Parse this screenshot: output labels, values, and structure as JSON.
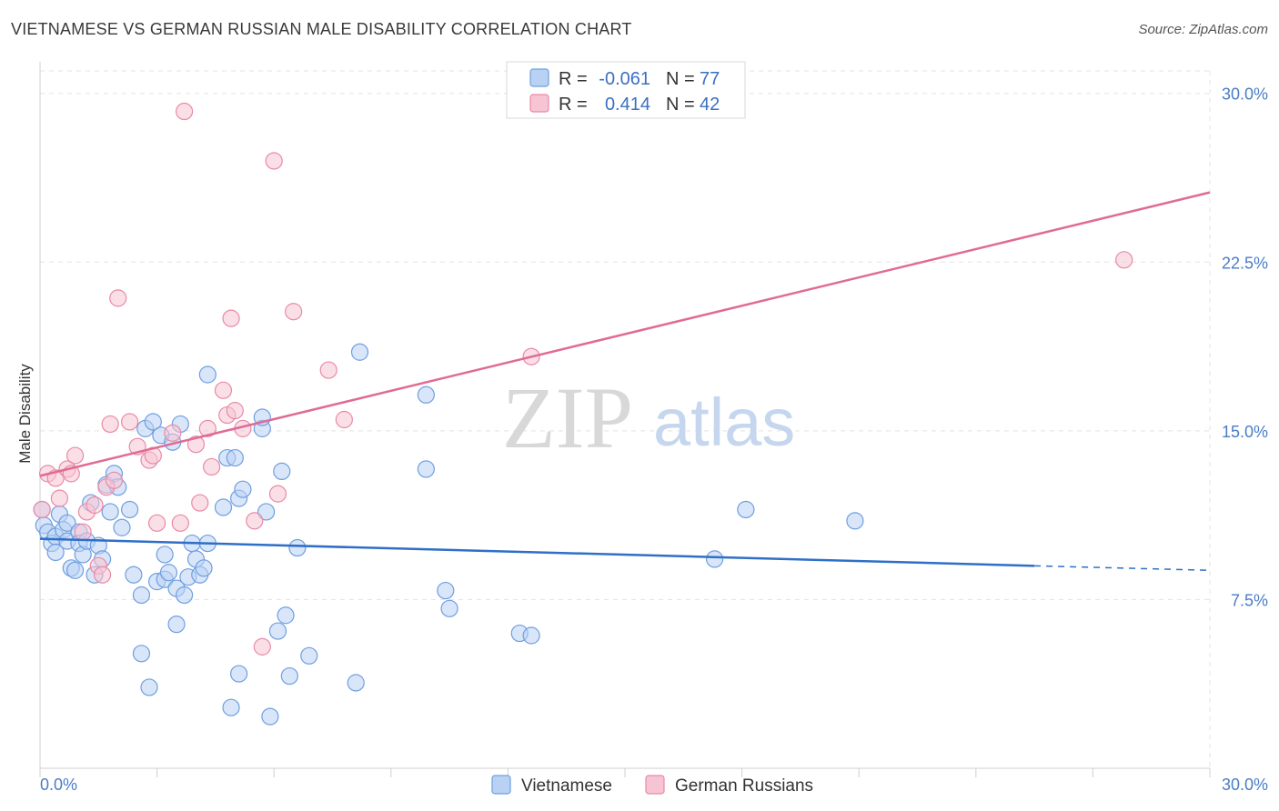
{
  "title": "VIETNAMESE VS GERMAN RUSSIAN MALE DISABILITY CORRELATION CHART",
  "source": "Source: ZipAtlas.com",
  "watermark": {
    "part1": "ZIP",
    "part2": "atlas"
  },
  "colors": {
    "vietnamese": "#6f9fe0",
    "vietnamese_fill": "#b9d2f4",
    "vietnamese_line": "#2f6fc7",
    "german_russian": "#e88aa8",
    "german_russian_fill": "#f7c4d4",
    "german_russian_line": "#e06b95",
    "tick_text": "#4a7cc7"
  },
  "legend": {
    "r_label": "R =",
    "n_label": "N =",
    "series": [
      {
        "r": "-0.061",
        "n": "77"
      },
      {
        "r": "0.414",
        "n": "42"
      }
    ]
  },
  "chart_data": {
    "type": "scatter",
    "title": "VIETNAMESE VS GERMAN RUSSIAN MALE DISABILITY CORRELATION CHART",
    "xlabel": "",
    "ylabel": "Male Disability",
    "xlim": [
      0,
      30
    ],
    "ylim": [
      0,
      31
    ],
    "x_tick_labels": [
      "0.0%",
      "30.0%"
    ],
    "y_ticks": [
      7.5,
      15.0,
      22.5,
      30.0
    ],
    "y_tick_labels": [
      "7.5%",
      "15.0%",
      "22.5%",
      "30.0%"
    ],
    "grid": true,
    "series": [
      {
        "name": "Vietnamese",
        "trend": {
          "x0": 0,
          "y0": 10.2,
          "x1": 25.5,
          "y1": 9.0,
          "dash_to": 30,
          "dash_y": 8.8
        },
        "points": [
          [
            0.1,
            10.8
          ],
          [
            0.2,
            10.5
          ],
          [
            0.3,
            10.0
          ],
          [
            0.4,
            10.3
          ],
          [
            0.4,
            9.6
          ],
          [
            0.5,
            11.3
          ],
          [
            0.6,
            10.6
          ],
          [
            0.7,
            10.1
          ],
          [
            0.7,
            10.9
          ],
          [
            0.8,
            8.9
          ],
          [
            0.9,
            8.8
          ],
          [
            1.0,
            10.5
          ],
          [
            1.0,
            10.0
          ],
          [
            1.1,
            9.5
          ],
          [
            1.2,
            10.1
          ],
          [
            1.3,
            11.8
          ],
          [
            1.4,
            8.6
          ],
          [
            1.5,
            9.9
          ],
          [
            1.6,
            9.3
          ],
          [
            1.7,
            12.6
          ],
          [
            1.8,
            11.4
          ],
          [
            1.9,
            13.1
          ],
          [
            2.0,
            12.5
          ],
          [
            2.1,
            10.7
          ],
          [
            2.3,
            11.5
          ],
          [
            2.4,
            8.6
          ],
          [
            2.6,
            5.1
          ],
          [
            2.6,
            7.7
          ],
          [
            2.7,
            15.1
          ],
          [
            2.8,
            3.6
          ],
          [
            2.9,
            15.4
          ],
          [
            3.0,
            8.3
          ],
          [
            3.1,
            14.8
          ],
          [
            3.2,
            8.4
          ],
          [
            3.2,
            9.5
          ],
          [
            3.3,
            8.7
          ],
          [
            3.4,
            14.5
          ],
          [
            3.5,
            8.0
          ],
          [
            3.5,
            6.4
          ],
          [
            3.6,
            15.3
          ],
          [
            3.7,
            7.7
          ],
          [
            3.8,
            8.5
          ],
          [
            3.9,
            10.0
          ],
          [
            4.0,
            9.3
          ],
          [
            4.1,
            8.6
          ],
          [
            4.2,
            8.9
          ],
          [
            4.3,
            10.0
          ],
          [
            4.3,
            17.5
          ],
          [
            4.7,
            11.6
          ],
          [
            4.8,
            13.8
          ],
          [
            4.9,
            2.7
          ],
          [
            5.0,
            13.8
          ],
          [
            5.1,
            12.0
          ],
          [
            5.1,
            4.2
          ],
          [
            5.2,
            12.4
          ],
          [
            5.7,
            15.1
          ],
          [
            5.7,
            15.6
          ],
          [
            5.8,
            11.4
          ],
          [
            5.9,
            2.3
          ],
          [
            6.1,
            6.1
          ],
          [
            6.2,
            13.2
          ],
          [
            6.3,
            6.8
          ],
          [
            6.4,
            4.1
          ],
          [
            6.6,
            9.8
          ],
          [
            6.9,
            5.0
          ],
          [
            8.1,
            3.8
          ],
          [
            8.2,
            18.5
          ],
          [
            9.9,
            13.3
          ],
          [
            9.9,
            16.6
          ],
          [
            10.4,
            7.9
          ],
          [
            10.5,
            7.1
          ],
          [
            12.3,
            6.0
          ],
          [
            12.6,
            5.9
          ],
          [
            17.3,
            9.3
          ],
          [
            18.1,
            11.5
          ],
          [
            20.9,
            11.0
          ],
          [
            0.05,
            11.5
          ]
        ]
      },
      {
        "name": "German Russians",
        "trend": {
          "x0": 0,
          "y0": 13.0,
          "x1": 30,
          "y1": 25.6
        },
        "points": [
          [
            0.05,
            11.5
          ],
          [
            0.2,
            13.1
          ],
          [
            0.4,
            12.9
          ],
          [
            0.5,
            12.0
          ],
          [
            0.7,
            13.3
          ],
          [
            0.8,
            13.1
          ],
          [
            0.9,
            13.9
          ],
          [
            1.1,
            10.5
          ],
          [
            1.2,
            11.4
          ],
          [
            1.4,
            11.7
          ],
          [
            1.5,
            9.0
          ],
          [
            1.6,
            8.6
          ],
          [
            1.7,
            12.5
          ],
          [
            1.8,
            15.3
          ],
          [
            1.9,
            12.8
          ],
          [
            2.0,
            20.9
          ],
          [
            2.3,
            15.4
          ],
          [
            2.5,
            14.3
          ],
          [
            2.8,
            13.7
          ],
          [
            2.9,
            13.9
          ],
          [
            3.0,
            10.9
          ],
          [
            3.4,
            14.9
          ],
          [
            3.6,
            10.9
          ],
          [
            3.7,
            29.2
          ],
          [
            4.0,
            14.4
          ],
          [
            4.1,
            11.8
          ],
          [
            4.3,
            15.1
          ],
          [
            4.4,
            13.4
          ],
          [
            4.7,
            16.8
          ],
          [
            4.8,
            15.7
          ],
          [
            4.9,
            20.0
          ],
          [
            5.0,
            15.9
          ],
          [
            5.2,
            15.1
          ],
          [
            5.5,
            11.0
          ],
          [
            5.7,
            5.4
          ],
          [
            6.0,
            27.0
          ],
          [
            6.1,
            12.2
          ],
          [
            6.5,
            20.3
          ],
          [
            7.4,
            17.7
          ],
          [
            7.8,
            15.5
          ],
          [
            12.6,
            18.3
          ],
          [
            27.8,
            22.6
          ]
        ]
      }
    ]
  },
  "bottom_legend": [
    "Vietnamese",
    "German Russians"
  ]
}
